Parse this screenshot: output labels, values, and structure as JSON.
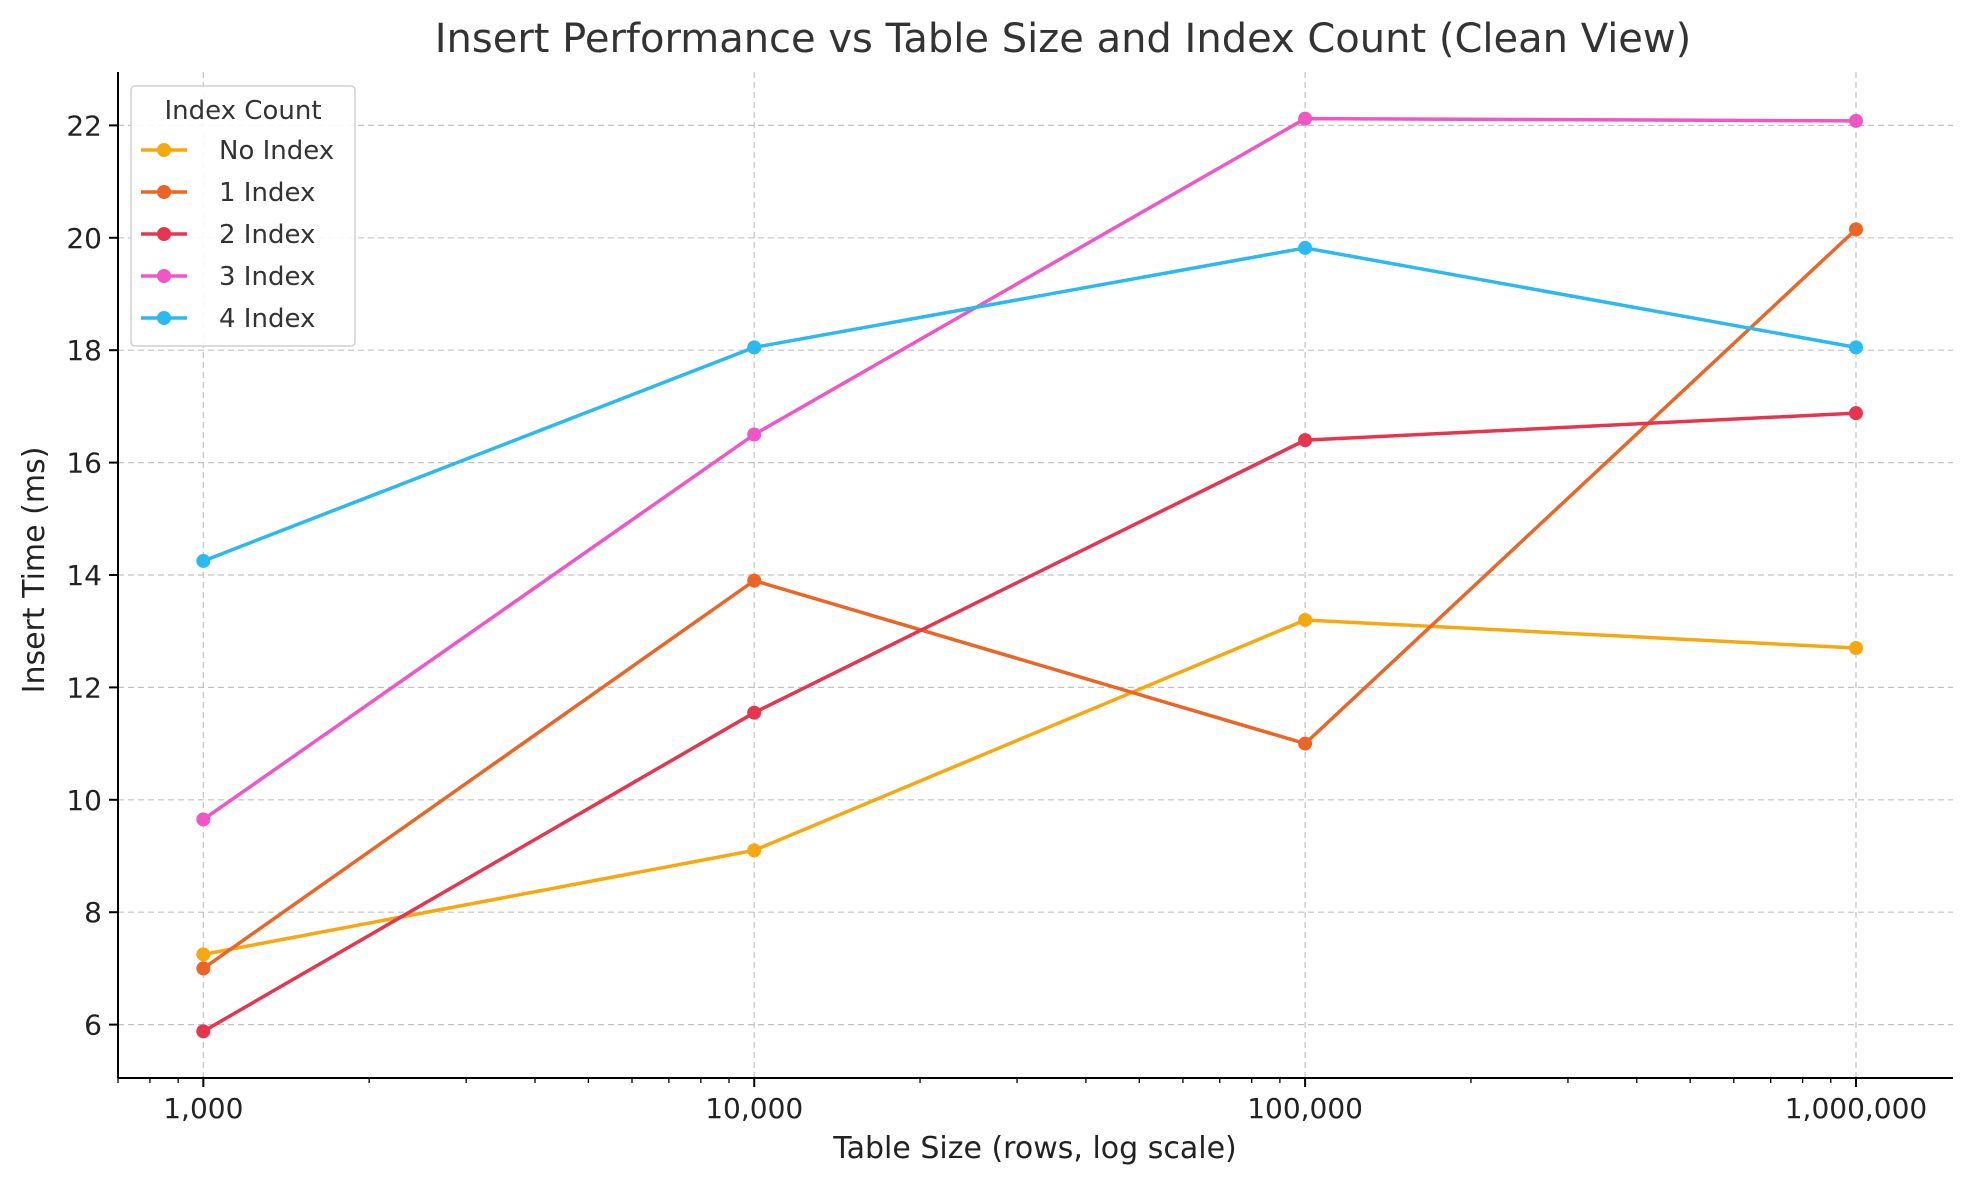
{
  "chart_data": {
    "type": "line",
    "title": "Insert Performance vs Table Size and Index Count (Clean View)",
    "xlabel": "Table Size (rows, log scale)",
    "ylabel": "Insert Time (ms)",
    "x_scale": "log",
    "x": [
      1000,
      10000,
      100000,
      1000000
    ],
    "x_tick_labels": [
      "1,000",
      "10,000",
      "100,000",
      "1,000,000"
    ],
    "xlim": [
      700,
      1500000
    ],
    "ylim": [
      5.05,
      22.95
    ],
    "y_ticks": [
      6,
      8,
      10,
      12,
      14,
      16,
      18,
      20,
      22
    ],
    "grid": true,
    "legend": {
      "title": "Index Count",
      "placement": "top-left"
    },
    "series": [
      {
        "name": "No Index",
        "color": "#F8A80F",
        "values": [
          7.25,
          9.1,
          13.2,
          12.7
        ]
      },
      {
        "name": "1 Index",
        "color": "#EC6524",
        "values": [
          7.0,
          13.9,
          11.0,
          20.15
        ]
      },
      {
        "name": "2 Index",
        "color": "#E8354F",
        "values": [
          5.88,
          11.55,
          16.4,
          16.88
        ]
      },
      {
        "name": "3 Index",
        "color": "#F155C6",
        "values": [
          9.65,
          16.5,
          22.12,
          22.08
        ]
      },
      {
        "name": "4 Index",
        "color": "#2BB9F1",
        "values": [
          14.25,
          18.05,
          19.82,
          18.05
        ]
      }
    ]
  }
}
